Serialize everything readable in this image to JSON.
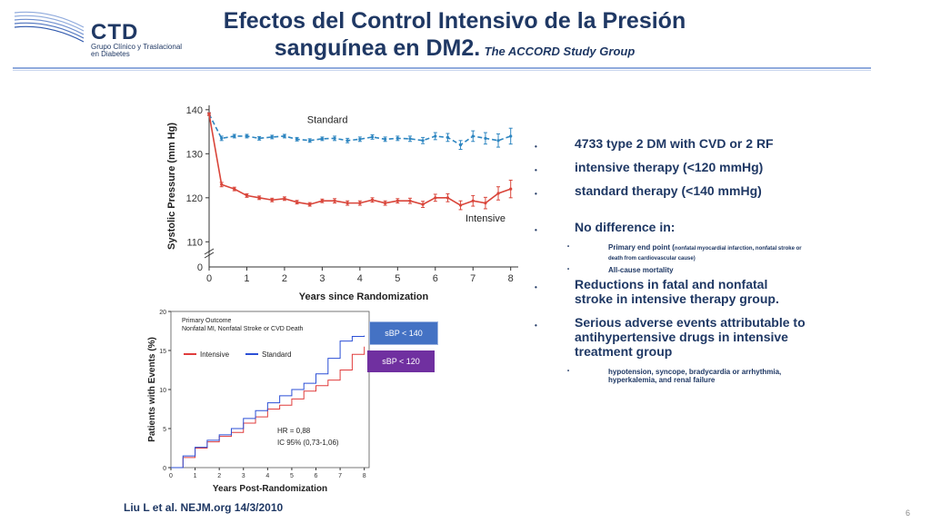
{
  "logo": {
    "text": "CTD",
    "subtitle": "Grupo Clínico y Traslacional en Diabetes"
  },
  "title": {
    "line1": "Efectos del Control Intensivo de la Presión",
    "line2": "sanguínea en DM2.",
    "line2_italic": "The ACCORD Study Group"
  },
  "bullets": [
    {
      "level": 1,
      "text": "4733 type 2 DM with CVD or 2 RF"
    },
    {
      "level": 1,
      "text": "intensive therapy (<120 mmHg)"
    },
    {
      "level": 1,
      "text": "standard therapy (<140 mmHg)"
    },
    {
      "level": 1,
      "text": "No difference in:",
      "gap_before": true
    },
    {
      "level": 2,
      "text": "Primary end point (",
      "small": "nonfatal myocardial infarction, nonfatal stroke or death from cardiovascular  cause)"
    },
    {
      "level": 2,
      "text": "All-cause mortality"
    },
    {
      "level": 1,
      "text": "Reductions in fatal and nonfatal stroke in intensive therapy group."
    },
    {
      "level": 1,
      "text": "Serious adverse events attributable to antihypertensive drugs in intensive treatment group"
    },
    {
      "level": 2,
      "text": "hypotension, syncope, bradycardia or arrhythmia, hyperkalemia,  and renal failure"
    }
  ],
  "legend_boxes": {
    "sbp140": "sBP < 140",
    "sbp120": "sBP < 120"
  },
  "footer": "Liu L et al. NEJM.org 14/3/2010",
  "page_number": "6",
  "colors": {
    "standard": "#2e86c1",
    "intensive": "#d9453a",
    "kaplan_intensive": "#e03c3c",
    "kaplan_standard": "#2b4fd6"
  },
  "chart_data": [
    {
      "type": "line",
      "xlabel": "Years since Randomization",
      "ylabel": "Systolic Pressure (mm Hg)",
      "xlim": [
        0,
        8.2
      ],
      "ylim": [
        108,
        141
      ],
      "yticks": [
        140,
        130,
        120,
        110
      ],
      "ybreak_label": "0",
      "xticks": [
        0,
        1,
        2,
        3,
        4,
        5,
        6,
        7,
        8
      ],
      "series": [
        {
          "name": "Standard",
          "x": [
            0,
            0.33,
            0.67,
            1,
            1.33,
            1.67,
            2,
            2.33,
            2.67,
            3,
            3.33,
            3.67,
            4,
            4.33,
            4.67,
            5,
            5.33,
            5.67,
            6,
            6.33,
            6.67,
            7,
            7.33,
            7.67,
            8
          ],
          "y": [
            139,
            133.5,
            134,
            134,
            133.5,
            133.8,
            134,
            133.3,
            133,
            133.4,
            133.5,
            133,
            133.3,
            133.8,
            133.3,
            133.5,
            133.4,
            133,
            134,
            133.7,
            132,
            134,
            133.5,
            133,
            134
          ],
          "err": [
            0.3,
            0.5,
            0.4,
            0.4,
            0.4,
            0.4,
            0.4,
            0.4,
            0.4,
            0.4,
            0.5,
            0.5,
            0.5,
            0.5,
            0.5,
            0.5,
            0.6,
            0.7,
            0.8,
            0.9,
            1.0,
            1.2,
            1.3,
            1.5,
            1.8
          ]
        },
        {
          "name": "Intensive",
          "x": [
            0,
            0.33,
            0.67,
            1,
            1.33,
            1.67,
            2,
            2.33,
            2.67,
            3,
            3.33,
            3.67,
            4,
            4.33,
            4.67,
            5,
            5.33,
            5.67,
            6,
            6.33,
            6.67,
            7,
            7.33,
            7.67,
            8
          ],
          "y": [
            139,
            123,
            122,
            120.5,
            120,
            119.5,
            119.8,
            119,
            118.5,
            119.3,
            119.3,
            118.8,
            118.8,
            119.5,
            118.8,
            119.3,
            119.3,
            118.5,
            120,
            120,
            118.3,
            119.3,
            118.8,
            121,
            122
          ],
          "err": [
            0.3,
            0.5,
            0.4,
            0.4,
            0.4,
            0.4,
            0.4,
            0.4,
            0.4,
            0.4,
            0.5,
            0.5,
            0.5,
            0.5,
            0.5,
            0.5,
            0.6,
            0.7,
            0.8,
            0.9,
            1.0,
            1.2,
            1.3,
            1.5,
            2.0
          ]
        }
      ]
    },
    {
      "type": "line",
      "title": "Primary Outcome",
      "subtitle": "Nonfatal MI, Nonfatal Stroke or CVD Death",
      "xlabel": "Years Post-Randomization",
      "ylabel": "Patients with Events (%)",
      "xlim": [
        0,
        8.2
      ],
      "ylim": [
        0,
        20
      ],
      "yticks": [
        0,
        5,
        10,
        15,
        20
      ],
      "xticks": [
        0,
        1,
        2,
        3,
        4,
        5,
        6,
        7,
        8
      ],
      "legend": "top-left",
      "annotation": [
        "HR = 0,88",
        "IC 95% (0,73-1,06)"
      ],
      "series": [
        {
          "name": "Intensive",
          "x": [
            0,
            0.5,
            1,
            1.5,
            2,
            2.5,
            3,
            3.5,
            4,
            4.5,
            5,
            5.5,
            6,
            6.5,
            7,
            7.5,
            8
          ],
          "y": [
            0,
            1.3,
            2.5,
            3.3,
            4,
            4.5,
            5.7,
            6.5,
            7.5,
            8,
            8.8,
            9.8,
            10.5,
            11.2,
            12.5,
            14.5,
            15.5
          ]
        },
        {
          "name": "Standard",
          "x": [
            0,
            0.5,
            1,
            1.5,
            2,
            2.5,
            3,
            3.5,
            4,
            4.5,
            5,
            5.5,
            6,
            6.5,
            7,
            7.5,
            8
          ],
          "y": [
            0,
            1.5,
            2.6,
            3.5,
            4.2,
            5,
            6.3,
            7.3,
            8.3,
            9.2,
            10,
            10.8,
            12,
            14,
            16.2,
            16.8,
            16.9
          ]
        }
      ]
    }
  ]
}
